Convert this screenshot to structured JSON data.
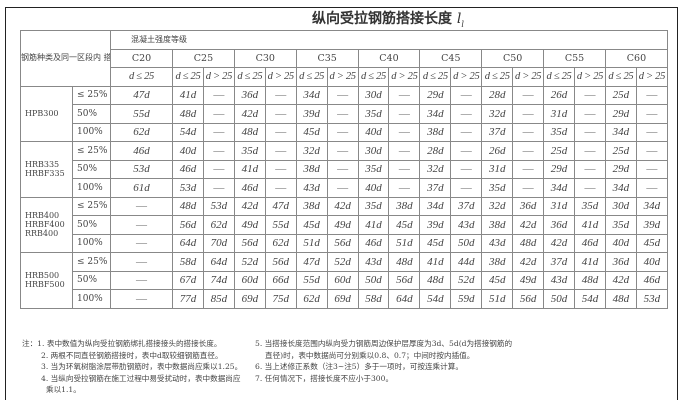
{
  "title": "纵向受拉钢筋搭接长度",
  "title_symbol": "l",
  "title_subscript": "l",
  "header": {
    "row_label": "钢筋种类及同一区段内\n搭接钢筋面积百分率",
    "group_label": "混凝土强度等级",
    "grades": [
      "C20",
      "C25",
      "C30",
      "C35",
      "C40",
      "C45",
      "C50",
      "C55",
      "C60"
    ],
    "sub_le": "d ≤ 25",
    "sub_gt": "d > 25"
  },
  "groups": [
    {
      "type": "HPB300",
      "rows": [
        {
          "pct": "≤ 25%",
          "values": [
            "47d",
            "41d",
            "—",
            "36d",
            "—",
            "34d",
            "—",
            "30d",
            "—",
            "29d",
            "—",
            "28d",
            "—",
            "26d",
            "—",
            "25d",
            "—"
          ]
        },
        {
          "pct": "50%",
          "values": [
            "55d",
            "48d",
            "—",
            "42d",
            "—",
            "39d",
            "—",
            "35d",
            "—",
            "34d",
            "—",
            "32d",
            "—",
            "31d",
            "—",
            "29d",
            "—"
          ]
        },
        {
          "pct": "100%",
          "values": [
            "62d",
            "54d",
            "—",
            "48d",
            "—",
            "45d",
            "—",
            "40d",
            "—",
            "38d",
            "—",
            "37d",
            "—",
            "35d",
            "—",
            "34d",
            "—"
          ]
        }
      ]
    },
    {
      "type": "HRB335\nHRBF335",
      "rows": [
        {
          "pct": "≤ 25%",
          "values": [
            "46d",
            "40d",
            "—",
            "35d",
            "—",
            "32d",
            "—",
            "30d",
            "—",
            "28d",
            "—",
            "26d",
            "—",
            "25d",
            "—",
            "25d",
            "—"
          ]
        },
        {
          "pct": "50%",
          "values": [
            "53d",
            "46d",
            "—",
            "41d",
            "—",
            "38d",
            "—",
            "35d",
            "—",
            "32d",
            "—",
            "31d",
            "—",
            "29d",
            "—",
            "29d",
            "—"
          ]
        },
        {
          "pct": "100%",
          "values": [
            "61d",
            "53d",
            "—",
            "46d",
            "—",
            "43d",
            "—",
            "40d",
            "—",
            "37d",
            "—",
            "35d",
            "—",
            "34d",
            "—",
            "34d",
            "—"
          ]
        }
      ]
    },
    {
      "type": "HRB400\nHRBF400\nRRB400",
      "rows": [
        {
          "pct": "≤ 25%",
          "values": [
            "—",
            "48d",
            "53d",
            "42d",
            "47d",
            "38d",
            "42d",
            "35d",
            "38d",
            "34d",
            "37d",
            "32d",
            "36d",
            "31d",
            "35d",
            "30d",
            "34d"
          ]
        },
        {
          "pct": "50%",
          "values": [
            "—",
            "56d",
            "62d",
            "49d",
            "55d",
            "45d",
            "49d",
            "41d",
            "45d",
            "39d",
            "43d",
            "38d",
            "42d",
            "36d",
            "41d",
            "35d",
            "39d"
          ]
        },
        {
          "pct": "100%",
          "values": [
            "—",
            "64d",
            "70d",
            "56d",
            "62d",
            "51d",
            "56d",
            "46d",
            "51d",
            "45d",
            "50d",
            "43d",
            "48d",
            "42d",
            "46d",
            "40d",
            "45d"
          ]
        }
      ]
    },
    {
      "type": "HRB500\nHRBF500",
      "rows": [
        {
          "pct": "≤ 25%",
          "values": [
            "—",
            "58d",
            "64d",
            "52d",
            "56d",
            "47d",
            "52d",
            "43d",
            "48d",
            "41d",
            "44d",
            "38d",
            "42d",
            "37d",
            "41d",
            "36d",
            "40d"
          ]
        },
        {
          "pct": "50%",
          "values": [
            "—",
            "67d",
            "74d",
            "60d",
            "66d",
            "55d",
            "60d",
            "50d",
            "56d",
            "48d",
            "52d",
            "45d",
            "49d",
            "43d",
            "48d",
            "42d",
            "46d"
          ]
        },
        {
          "pct": "100%",
          "values": [
            "—",
            "77d",
            "85d",
            "69d",
            "75d",
            "62d",
            "69d",
            "58d",
            "64d",
            "54d",
            "59d",
            "51d",
            "56d",
            "50d",
            "54d",
            "48d",
            "53d"
          ]
        }
      ]
    }
  ],
  "notes": {
    "left": [
      "注：1. 表中数值为纵向受拉钢筋绑扎搭接接头的搭接长度。",
      "2. 两根不同直径钢筋搭接时，表中d取较细钢筋直径。",
      "3. 当为环氧树脂涂层带肋钢筋时，表中数据尚应乘以1.25。",
      "4. 当纵向受拉钢筋在施工过程中易受扰动时，表中数据尚应",
      "乘以1.1。"
    ],
    "right": [
      "5. 当搭接长度范围内纵向受力钢筋周边保护层厚度为3d、5d(d为搭接钢筋的",
      "直径)时，表中数据尚可分别乘以0.8、0.7；中间时按内插值。",
      "6. 当上述修正系数（注3~注5）多于一项时，可按连乘计算。",
      "7. 任何情况下，搭接长度不应小于300。"
    ]
  }
}
